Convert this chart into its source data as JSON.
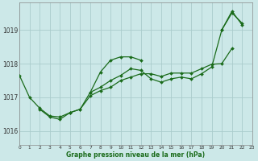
{
  "bg_color": "#cce8e8",
  "grid_color": "#aacccc",
  "line_color": "#1a6b1a",
  "marker_color": "#1a6b1a",
  "xlabel": "Graphe pression niveau de la mer (hPa)",
  "xlim": [
    0,
    23
  ],
  "ylim": [
    1015.6,
    1019.8
  ],
  "yticks": [
    1016,
    1017,
    1018,
    1019
  ],
  "xticks": [
    0,
    1,
    2,
    3,
    4,
    5,
    6,
    7,
    8,
    9,
    10,
    11,
    12,
    13,
    14,
    15,
    16,
    17,
    18,
    19,
    20,
    21,
    22,
    23
  ],
  "series": [
    {
      "x": [
        0,
        1,
        2,
        3,
        4,
        5,
        6,
        7,
        8,
        9,
        10,
        11,
        12
      ],
      "y": [
        1017.65,
        1017.0,
        1016.68,
        1016.45,
        1016.42,
        1016.55,
        1016.65,
        1017.15,
        1017.75,
        1018.1,
        1018.2,
        1018.2,
        1018.1
      ]
    },
    {
      "x": [
        7,
        8,
        9,
        10,
        11,
        12,
        13,
        14,
        15,
        16,
        17,
        18,
        19,
        20,
        21,
        22
      ],
      "y": [
        1017.15,
        1017.3,
        1017.5,
        1017.65,
        1017.85,
        1017.8,
        1017.55,
        1017.45,
        1017.55,
        1017.6,
        1017.55,
        1017.7,
        1017.9,
        1019.0,
        1019.5,
        1019.2
      ]
    },
    {
      "x": [
        2,
        3,
        4,
        5,
        6,
        7,
        8,
        9,
        10,
        11,
        12,
        13,
        14,
        15,
        16,
        17,
        18,
        19,
        20,
        21
      ],
      "y": [
        1016.65,
        1016.42,
        1016.35,
        1016.55,
        1016.65,
        1017.05,
        1017.2,
        1017.3,
        1017.5,
        1017.6,
        1017.7,
        1017.7,
        1017.62,
        1017.72,
        1017.72,
        1017.72,
        1017.85,
        1017.98,
        1018.0,
        1018.45
      ]
    },
    {
      "x": [
        20,
        21,
        22
      ],
      "y": [
        1019.0,
        1019.55,
        1019.15
      ]
    }
  ]
}
